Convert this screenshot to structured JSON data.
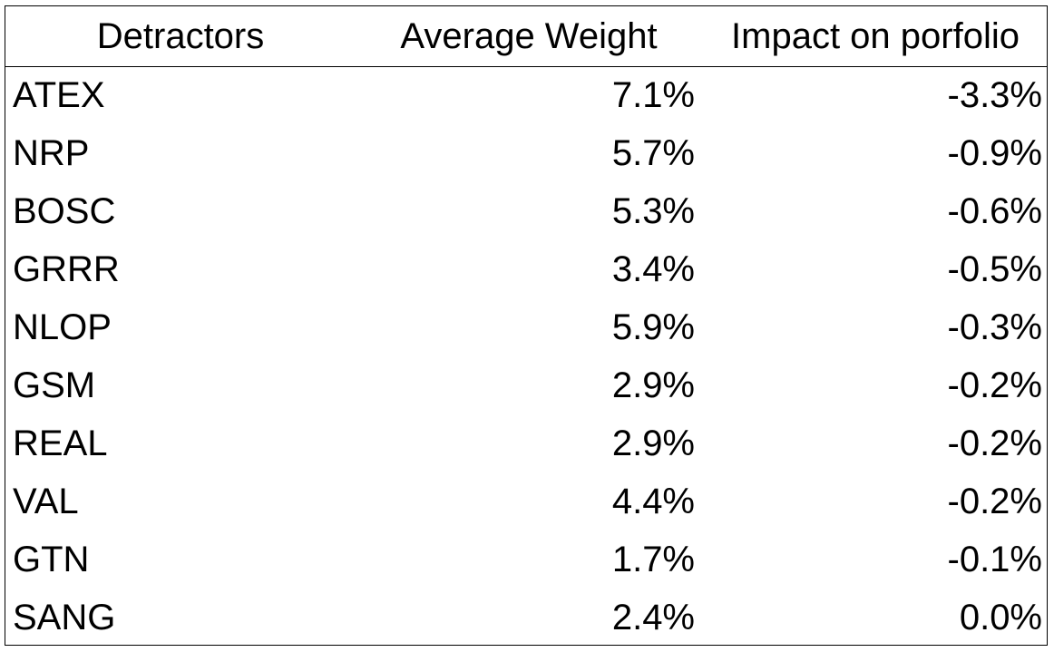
{
  "table": {
    "headers": [
      "Detractors",
      "Average Weight",
      "Impact on porfolio"
    ],
    "rows": [
      [
        "ATEX",
        "7.1%",
        "-3.3%"
      ],
      [
        "NRP",
        "5.7%",
        "-0.9%"
      ],
      [
        "BOSC",
        "5.3%",
        "-0.6%"
      ],
      [
        "GRRR",
        "3.4%",
        "-0.5%"
      ],
      [
        "NLOP",
        "5.9%",
        "-0.3%"
      ],
      [
        "GSM",
        "2.9%",
        "-0.2%"
      ],
      [
        "REAL",
        "2.9%",
        "-0.2%"
      ],
      [
        "VAL",
        "4.4%",
        "-0.2%"
      ],
      [
        "GTN",
        "1.7%",
        "-0.1%"
      ],
      [
        "SANG",
        "2.4%",
        "0.0%"
      ]
    ]
  }
}
